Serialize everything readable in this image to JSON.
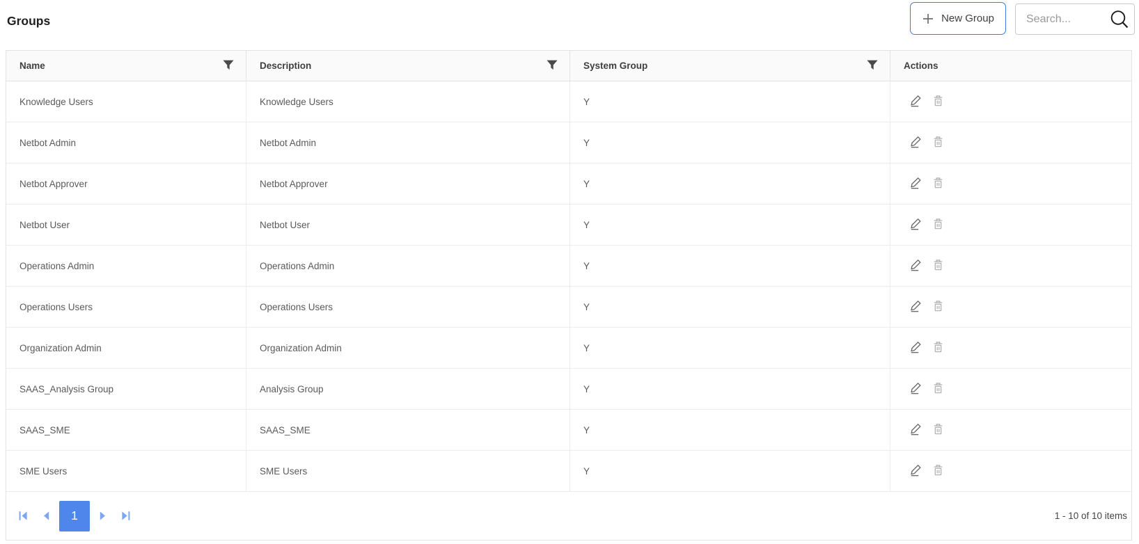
{
  "page": {
    "title": "Groups"
  },
  "toolbar": {
    "new_group_label": "New Group",
    "search_placeholder": "Search..."
  },
  "table": {
    "columns": [
      {
        "label": "Name",
        "filterable": true
      },
      {
        "label": "Description",
        "filterable": true
      },
      {
        "label": "System Group",
        "filterable": true
      },
      {
        "label": "Actions",
        "filterable": false
      }
    ],
    "rows": [
      {
        "name": "Knowledge Users",
        "description": "Knowledge Users",
        "system_group": "Y"
      },
      {
        "name": "Netbot Admin",
        "description": "Netbot Admin",
        "system_group": "Y"
      },
      {
        "name": "Netbot Approver",
        "description": "Netbot Approver",
        "system_group": "Y"
      },
      {
        "name": "Netbot User",
        "description": "Netbot User",
        "system_group": "Y"
      },
      {
        "name": "Operations Admin",
        "description": "Operations Admin",
        "system_group": "Y"
      },
      {
        "name": "Operations Users",
        "description": "Operations Users",
        "system_group": "Y"
      },
      {
        "name": "Organization Admin",
        "description": "Organization Admin",
        "system_group": "Y"
      },
      {
        "name": "SAAS_Analysis Group",
        "description": "Analysis Group",
        "system_group": "Y"
      },
      {
        "name": "SAAS_SME",
        "description": "SAAS_SME",
        "system_group": "Y"
      },
      {
        "name": "SME Users",
        "description": "SME Users",
        "system_group": "Y"
      }
    ],
    "row_action_icons": [
      "pencil-icon",
      "trash-icon"
    ]
  },
  "pagination": {
    "current_page": "1",
    "summary": "1 - 10 of 10 items",
    "nav_icons": [
      "first-page-icon",
      "prev-page-icon",
      "next-page-icon",
      "last-page-icon"
    ]
  },
  "icons": {
    "toolbar": [
      "plus-icon",
      "magnifier-icon"
    ],
    "header_filter": "filter-funnel-icon"
  },
  "colors": {
    "accent_blue": "#4e86ec",
    "pager_arrow_blue": "#7ea6f0",
    "button_border_blue": "#4478e0",
    "header_bg": "#fafafa",
    "grid_border": "#e3e3e3",
    "row_border": "#ececec",
    "header_text": "#3f3f3f",
    "row_text": "#5a5a5a",
    "edit_icon_gray": "#646464",
    "trash_icon_gray": "#ababab"
  }
}
